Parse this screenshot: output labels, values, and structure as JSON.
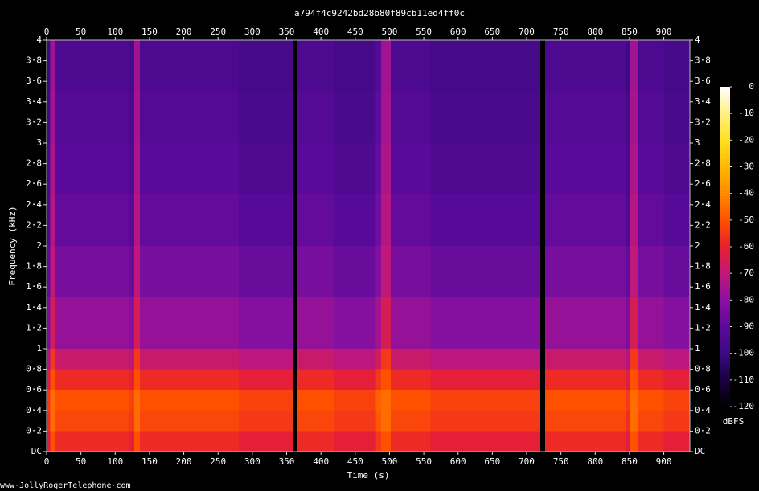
{
  "chart_data": {
    "type": "spectrogram",
    "title": "a794f4c9242bd28b80f89cb11ed4ff0c",
    "x_label": "Time (s)",
    "y_label": "Frequency (kHz)",
    "colorbar_label": "dBFS",
    "footer": "www·JollyRogerTelephone·com",
    "xlim": [
      0,
      938
    ],
    "ylim": [
      0,
      4
    ],
    "xticks": [
      0,
      50,
      100,
      150,
      200,
      250,
      300,
      350,
      400,
      450,
      500,
      550,
      600,
      650,
      700,
      750,
      800,
      850,
      900
    ],
    "yticks": [
      {
        "value": 0,
        "label": "DC"
      },
      {
        "value": 0.2,
        "label": "0·2"
      },
      {
        "value": 0.4,
        "label": "0·4"
      },
      {
        "value": 0.6,
        "label": "0·6"
      },
      {
        "value": 0.8,
        "label": "0·8"
      },
      1,
      {
        "value": 1.2,
        "label": "1·2"
      },
      {
        "value": 1.4,
        "label": "1·4"
      },
      {
        "value": 1.6,
        "label": "1·6"
      },
      {
        "value": 1.8,
        "label": "1·8"
      },
      2,
      {
        "value": 2.2,
        "label": "2·2"
      },
      {
        "value": 2.4,
        "label": "2·4"
      },
      {
        "value": 2.6,
        "label": "2·6"
      },
      {
        "value": 2.8,
        "label": "2·8"
      },
      3,
      {
        "value": 3.2,
        "label": "3·2"
      },
      {
        "value": 3.4,
        "label": "3·4"
      },
      {
        "value": 3.6,
        "label": "3·6"
      },
      {
        "value": 3.8,
        "label": "3·8"
      },
      4
    ],
    "clim": [
      -120,
      0
    ],
    "cticks": [
      0,
      -10,
      -20,
      -30,
      -40,
      -50,
      -60,
      -70,
      -80,
      -90,
      -100,
      -110,
      -120
    ],
    "colormap": [
      "#000000",
      "#1a0040",
      "#3a0a80",
      "#5a0a9a",
      "#8a10a0",
      "#c0187a",
      "#e82030",
      "#ff5000",
      "#ff8a00",
      "#ffb800",
      "#ffe020",
      "#fff080",
      "#ffffff"
    ],
    "time_edges": [
      0,
      5,
      12,
      60,
      120,
      128,
      136,
      200,
      280,
      360,
      366,
      420,
      480,
      488,
      502,
      560,
      640,
      720,
      727,
      780,
      845,
      850,
      862,
      900,
      938
    ],
    "freq_edges": [
      0,
      0.2,
      0.4,
      0.6,
      0.8,
      1,
      1.5,
      2,
      2.5,
      3,
      3.5,
      4
    ],
    "values": [
      [
        -63,
        -50,
        -58,
        -58,
        -61,
        -50,
        -58,
        -58,
        -61,
        -120,
        -58,
        -61,
        -55,
        -50,
        -58,
        -61,
        -61,
        -120,
        -58,
        -58,
        -63,
        -50,
        -58,
        -61
      ],
      [
        -57,
        -45,
        -52,
        -52,
        -55,
        -45,
        -52,
        -52,
        -55,
        -120,
        -52,
        -55,
        -49,
        -45,
        -52,
        -55,
        -55,
        -120,
        -52,
        -52,
        -57,
        -45,
        -52,
        -55
      ],
      [
        -55,
        -45,
        -50,
        -50,
        -53,
        -45,
        -50,
        -50,
        -53,
        -120,
        -50,
        -53,
        -47,
        -45,
        -50,
        -53,
        -53,
        -120,
        -50,
        -50,
        -55,
        -45,
        -50,
        -53
      ],
      [
        -63,
        -50,
        -58,
        -58,
        -61,
        -50,
        -58,
        -58,
        -61,
        -120,
        -58,
        -61,
        -55,
        -50,
        -58,
        -61,
        -61,
        -120,
        -58,
        -58,
        -63,
        -50,
        -58,
        -61
      ],
      [
        -73,
        -55,
        -68,
        -68,
        -71,
        -55,
        -68,
        -68,
        -71,
        -120,
        -68,
        -71,
        -65,
        -55,
        -68,
        -71,
        -71,
        -120,
        -68,
        -68,
        -73,
        -55,
        -68,
        -71
      ],
      [
        -83,
        -65,
        -78,
        -78,
        -81,
        -65,
        -78,
        -78,
        -81,
        -120,
        -78,
        -81,
        -75,
        -65,
        -78,
        -81,
        -81,
        -120,
        -78,
        -78,
        -83,
        -65,
        -78,
        -81
      ],
      [
        -89,
        -70,
        -84,
        -84,
        -87,
        -70,
        -84,
        -84,
        -87,
        -120,
        -84,
        -87,
        -81,
        -70,
        -84,
        -87,
        -87,
        -120,
        -84,
        -84,
        -89,
        -70,
        -84,
        -87
      ],
      [
        -93,
        -72,
        -88,
        -88,
        -91,
        -72,
        -88,
        -88,
        -91,
        -120,
        -88,
        -91,
        -85,
        -72,
        -88,
        -91,
        -91,
        -120,
        -88,
        -88,
        -93,
        -72,
        -88,
        -91
      ],
      [
        -95,
        -74,
        -90,
        -90,
        -93,
        -74,
        -90,
        -90,
        -93,
        -120,
        -90,
        -93,
        -87,
        -74,
        -90,
        -93,
        -93,
        -120,
        -90,
        -90,
        -95,
        -74,
        -90,
        -93
      ],
      [
        -97,
        -75,
        -92,
        -92,
        -95,
        -75,
        -92,
        -92,
        -95,
        -120,
        -92,
        -95,
        -89,
        -75,
        -92,
        -95,
        -95,
        -120,
        -92,
        -92,
        -97,
        -75,
        -92,
        -95
      ],
      [
        -99,
        -76,
        -94,
        -94,
        -97,
        -76,
        -94,
        -94,
        -97,
        -120,
        -94,
        -97,
        -91,
        -76,
        -94,
        -97,
        -97,
        -120,
        -94,
        -94,
        -99,
        -76,
        -94,
        -97
      ]
    ]
  }
}
